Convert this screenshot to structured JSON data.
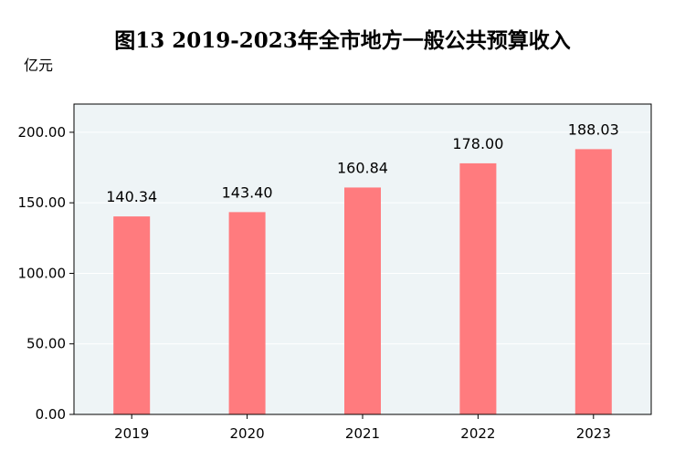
{
  "chart_data": {
    "type": "bar",
    "title": "图13  2019-2023年全市地方一般公共预算收入",
    "unit_label": "亿元",
    "categories": [
      "2019",
      "2020",
      "2021",
      "2022",
      "2023"
    ],
    "values": [
      140.34,
      143.4,
      160.84,
      178.0,
      188.03
    ],
    "value_labels": [
      "140.34",
      "143.40",
      "160.84",
      "178.00",
      "188.03"
    ],
    "ylim": [
      0,
      220
    ],
    "y_ticks": [
      0,
      50,
      100,
      150,
      200
    ],
    "y_tick_labels": [
      "0.00",
      "50.00",
      "100.00",
      "150.00",
      "200.00"
    ],
    "grid": true,
    "colors": {
      "bar": "#ff7b7e",
      "plot_background": "#eef4f6",
      "grid": "#ffffff",
      "frame": "#000000"
    }
  }
}
